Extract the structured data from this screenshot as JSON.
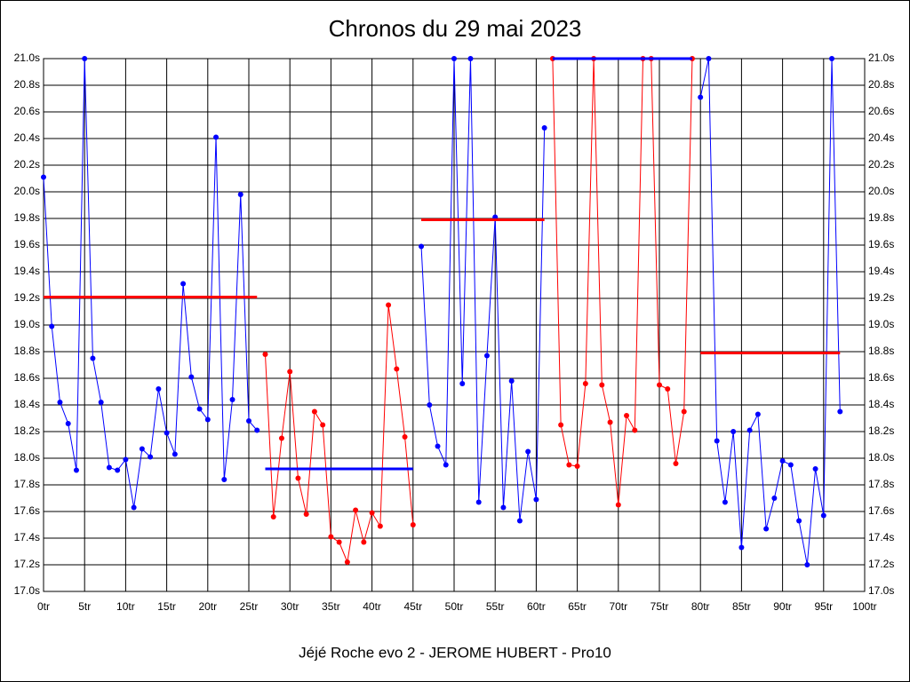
{
  "chart_data": {
    "type": "line",
    "title": "Chronos du 29 mai 2023",
    "x_label": "Jéjé Roche evo 2 - JEROME HUBERT - Pro10",
    "xlim": [
      0,
      100
    ],
    "ylim": [
      17.0,
      21.0
    ],
    "grid": true,
    "xticks": [
      {
        "value": 0,
        "label": "0tr"
      },
      {
        "value": 5,
        "label": "5tr"
      },
      {
        "value": 10,
        "label": "10tr"
      },
      {
        "value": 15,
        "label": "15tr"
      },
      {
        "value": 20,
        "label": "20tr"
      },
      {
        "value": 25,
        "label": "25tr"
      },
      {
        "value": 30,
        "label": "30tr"
      },
      {
        "value": 35,
        "label": "35tr"
      },
      {
        "value": 40,
        "label": "40tr"
      },
      {
        "value": 45,
        "label": "45tr"
      },
      {
        "value": 50,
        "label": "50tr"
      },
      {
        "value": 55,
        "label": "55tr"
      },
      {
        "value": 60,
        "label": "60tr"
      },
      {
        "value": 65,
        "label": "65tr"
      },
      {
        "value": 70,
        "label": "70tr"
      },
      {
        "value": 75,
        "label": "75tr"
      },
      {
        "value": 80,
        "label": "80tr"
      },
      {
        "value": 85,
        "label": "85tr"
      },
      {
        "value": 90,
        "label": "90tr"
      },
      {
        "value": 95,
        "label": "95tr"
      },
      {
        "value": 100,
        "label": "100tr"
      }
    ],
    "yticks": [
      {
        "value": 17.0,
        "label": "17.0s"
      },
      {
        "value": 17.2,
        "label": "17.2s"
      },
      {
        "value": 17.4,
        "label": "17.4s"
      },
      {
        "value": 17.6,
        "label": "17.6s"
      },
      {
        "value": 17.8,
        "label": "17.8s"
      },
      {
        "value": 18.0,
        "label": "18.0s"
      },
      {
        "value": 18.2,
        "label": "18.2s"
      },
      {
        "value": 18.4,
        "label": "18.4s"
      },
      {
        "value": 18.6,
        "label": "18.6s"
      },
      {
        "value": 18.8,
        "label": "18.8s"
      },
      {
        "value": 19.0,
        "label": "19.0s"
      },
      {
        "value": 19.2,
        "label": "19.2s"
      },
      {
        "value": 19.4,
        "label": "19.4s"
      },
      {
        "value": 19.6,
        "label": "19.6s"
      },
      {
        "value": 19.8,
        "label": "19.8s"
      },
      {
        "value": 20.0,
        "label": "20.0s"
      },
      {
        "value": 20.2,
        "label": "20.2s"
      },
      {
        "value": 20.4,
        "label": "20.4s"
      },
      {
        "value": 20.6,
        "label": "20.6s"
      },
      {
        "value": 20.8,
        "label": "20.8s"
      },
      {
        "value": 21.0,
        "label": "21.0s"
      }
    ],
    "series": [
      {
        "color": "#0000ff",
        "x": [
          0,
          1,
          2,
          3,
          4,
          5,
          6,
          7,
          8,
          9,
          10,
          11,
          12,
          13,
          14,
          15,
          16,
          17,
          18,
          19,
          20,
          21,
          22,
          23,
          24,
          25,
          26
        ],
        "values": [
          20.11,
          18.99,
          18.42,
          18.26,
          17.91,
          21.0,
          18.75,
          18.42,
          17.93,
          17.91,
          17.99,
          17.63,
          18.07,
          18.01,
          18.52,
          18.19,
          18.03,
          19.31,
          18.61,
          18.37,
          18.29,
          20.41,
          17.84,
          18.44,
          19.98,
          18.28,
          18.21
        ]
      },
      {
        "color": "#ff0000",
        "x": [
          27,
          28,
          29,
          30,
          31,
          32,
          33,
          34,
          35,
          36,
          37,
          38,
          39,
          40,
          41,
          42,
          43,
          44,
          45
        ],
        "values": [
          18.78,
          17.56,
          18.15,
          18.65,
          17.85,
          17.58,
          18.35,
          18.25,
          17.41,
          17.37,
          17.22,
          17.61,
          17.37,
          17.59,
          17.49,
          19.15,
          18.67,
          18.16,
          17.5
        ]
      },
      {
        "color": "#0000ff",
        "x": [
          46,
          47,
          48,
          49,
          50,
          51,
          52,
          53,
          54,
          55,
          56,
          57,
          58,
          59,
          60,
          61
        ],
        "values": [
          19.59,
          18.4,
          18.09,
          17.95,
          21.0,
          18.56,
          21.0,
          17.67,
          18.77,
          19.81,
          17.63,
          18.58,
          17.53,
          18.05,
          17.69,
          20.48
        ]
      },
      {
        "color": "#ff0000",
        "x": [
          62,
          63,
          64,
          65,
          66,
          67,
          68,
          69,
          70,
          71,
          72,
          73,
          74,
          75,
          76,
          77,
          78,
          79
        ],
        "values": [
          21.0,
          18.25,
          17.95,
          17.94,
          18.56,
          21.0,
          18.55,
          18.27,
          17.65,
          18.32,
          18.21,
          21.0,
          21.0,
          18.55,
          18.52,
          17.96,
          18.35,
          21.0
        ]
      },
      {
        "color": "#0000ff",
        "x": [
          80,
          81,
          82,
          83,
          84,
          85,
          86,
          87,
          88,
          89,
          90,
          91,
          92,
          93,
          94,
          95,
          96,
          97
        ],
        "values": [
          20.71,
          21.0,
          18.13,
          17.67,
          18.2,
          17.33,
          18.21,
          18.33,
          17.47,
          17.7,
          17.98,
          17.95,
          17.53,
          17.2,
          17.92,
          17.57,
          21.0,
          18.35
        ]
      }
    ],
    "reference_lines": [
      {
        "color": "#ff0000",
        "value": 19.21,
        "x": [
          0,
          26
        ]
      },
      {
        "color": "#0000ff",
        "value": 17.92,
        "x": [
          27,
          45
        ]
      },
      {
        "color": "#ff0000",
        "value": 19.79,
        "x": [
          46,
          61
        ]
      },
      {
        "color": "#0000ff",
        "value": 21.0,
        "x": [
          62,
          79
        ]
      },
      {
        "color": "#ff0000",
        "value": 18.79,
        "x": [
          80,
          97
        ]
      }
    ]
  }
}
